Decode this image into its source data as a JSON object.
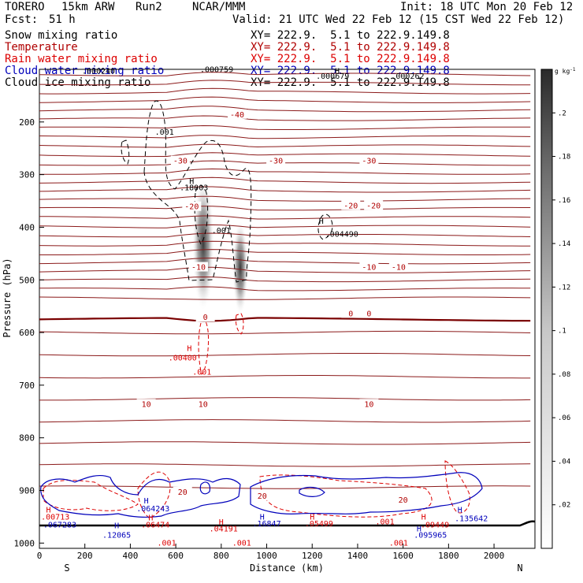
{
  "header": {
    "model": "TORERO",
    "resolution": "15km ARW",
    "run": "Run2",
    "org": "NCAR/MMM",
    "init": "Init: 18 UTC Mon 20 Feb 12",
    "fcst_label": "Fcst:",
    "fcst_value": "51 h",
    "valid": "Valid: 21 UTC Wed 22 Feb 12 (15 CST Wed 22 Feb 12)"
  },
  "legend": [
    {
      "name": "Snow mixing ratio",
      "color": "#000000",
      "xy": "XY= 222.9.  5.1 to 222.9.149.8"
    },
    {
      "name": "Temperature",
      "color": "#b00000",
      "xy": "XY= 222.9.  5.1 to 222.9.149.8"
    },
    {
      "name": "Rain water mixing ratio",
      "color": "#dd0000",
      "xy": "XY= 222.9.  5.1 to 222.9.149.8"
    },
    {
      "name": "Cloud water mixing ratio",
      "color": "#0000bb",
      "xy": "XY= 222.9.  5.1 to 222.9.149.8"
    },
    {
      "name": "Cloud ice mixing ratio",
      "color": "#000000",
      "xy": "XY= 222.9.  5.1 to 222.9.149.8"
    }
  ],
  "chart_data": {
    "type": "contour",
    "xlabel": "Distance (km)",
    "ylabel": "Pressure (hPa)",
    "x_range": [
      0,
      2180
    ],
    "y_range": [
      100,
      1010
    ],
    "x_ticks": [
      "0",
      "200",
      "400",
      "600",
      "800",
      "1000",
      "1200",
      "1400",
      "1600",
      "1800",
      "2000"
    ],
    "y_ticks": [
      "200",
      "300",
      "400",
      "500",
      "600",
      "700",
      "800",
      "900",
      "1000"
    ],
    "x_end_labels": {
      "left": "S",
      "right": "N"
    },
    "colorbar": {
      "unit": "g kg",
      "unit_exp": "-1",
      "ticks": [
        ".02",
        ".04",
        ".06",
        ".08",
        ".1",
        ".12",
        ".14",
        ".16",
        ".18",
        ".2"
      ],
      "range": [
        0,
        0.22
      ]
    },
    "temperature_isotherms": [
      {
        "label": "-40",
        "x": 870,
        "p": 185
      },
      {
        "label": "-30",
        "x": 620,
        "p": 273
      },
      {
        "label": "-30",
        "x": 1040,
        "p": 273
      },
      {
        "label": "-30",
        "x": 1450,
        "p": 273
      },
      {
        "label": "-20",
        "x": 670,
        "p": 360
      },
      {
        "label": "-20",
        "x": 1370,
        "p": 358
      },
      {
        "label": "-20",
        "x": 1470,
        "p": 358
      },
      {
        "label": "-10",
        "x": 700,
        "p": 475
      },
      {
        "label": "-10",
        "x": 1450,
        "p": 475
      },
      {
        "label": "-10",
        "x": 1580,
        "p": 475
      },
      {
        "label": "0",
        "x": 730,
        "p": 570
      },
      {
        "label": "0",
        "x": 1370,
        "p": 563
      },
      {
        "label": "0",
        "x": 1450,
        "p": 563
      },
      {
        "label": "10",
        "x": 470,
        "p": 735
      },
      {
        "label": "10",
        "x": 720,
        "p": 735
      },
      {
        "label": "10",
        "x": 1450,
        "p": 735
      },
      {
        "label": "20",
        "x": 630,
        "p": 902
      },
      {
        "label": "20",
        "x": 980,
        "p": 910
      },
      {
        "label": "20",
        "x": 1600,
        "p": 917
      }
    ],
    "annotations": [
      {
        "text": ".000240",
        "x": 260,
        "p": 108,
        "color": "#000000"
      },
      {
        "text": ".000759",
        "x": 780,
        "p": 105,
        "color": "#000000"
      },
      {
        "text": ".000679",
        "x": 1290,
        "p": 118,
        "color": "#000000"
      },
      {
        "text": ".000262",
        "x": 1620,
        "p": 118,
        "color": "#000000"
      },
      {
        "text": ".001",
        "x": 550,
        "p": 224,
        "color": "#000000"
      },
      {
        "text": ".18003",
        "x": 680,
        "p": 330,
        "color": "#000000"
      },
      {
        "text": ".001",
        "x": 800,
        "p": 411,
        "color": "#000000"
      },
      {
        "text": ".004490",
        "x": 1330,
        "p": 418,
        "color": "#000000"
      },
      {
        "text": ".00400",
        "x": 630,
        "p": 653,
        "color": "#dd0000"
      },
      {
        "text": ".001",
        "x": 715,
        "p": 680,
        "color": "#dd0000"
      },
      {
        "text": ".00713",
        "x": 70,
        "p": 955,
        "color": "#dd0000"
      },
      {
        "text": ".067283",
        "x": 90,
        "p": 970,
        "color": "#0000bb"
      },
      {
        "text": ".064243",
        "x": 500,
        "p": 940,
        "color": "#0000bb"
      },
      {
        "text": ".06474",
        "x": 510,
        "p": 970,
        "color": "#dd0000"
      },
      {
        "text": ".12065",
        "x": 340,
        "p": 990,
        "color": "#0000bb"
      },
      {
        "text": ".04191",
        "x": 810,
        "p": 978,
        "color": "#dd0000"
      },
      {
        "text": ".16847",
        "x": 1000,
        "p": 968,
        "color": "#0000bb"
      },
      {
        "text": ".05499",
        "x": 1230,
        "p": 968,
        "color": "#dd0000"
      },
      {
        "text": ".001",
        "x": 1520,
        "p": 964,
        "color": "#dd0000"
      },
      {
        "text": ".09449",
        "x": 1740,
        "p": 970,
        "color": "#dd0000"
      },
      {
        "text": ".135642",
        "x": 1900,
        "p": 958,
        "color": "#0000bb"
      },
      {
        "text": ".095965",
        "x": 1720,
        "p": 990,
        "color": "#0000bb"
      },
      {
        "text": ".001",
        "x": 560,
        "p": 1005,
        "color": "#dd0000"
      },
      {
        "text": ".001",
        "x": 890,
        "p": 1005,
        "color": "#dd0000"
      },
      {
        "text": ".001",
        "x": 1580,
        "p": 1005,
        "color": "#dd0000"
      }
    ],
    "high_markers": [
      {
        "text": "H",
        "x": 670,
        "p": 318,
        "color": "#000000"
      },
      {
        "text": "H",
        "x": 1240,
        "p": 393,
        "color": "#000000"
      },
      {
        "text": "H",
        "x": 1310,
        "p": 108,
        "color": "#000000"
      },
      {
        "text": "H",
        "x": 660,
        "p": 635,
        "color": "#dd0000"
      },
      {
        "text": "H",
        "x": 40,
        "p": 942,
        "color": "#dd0000"
      },
      {
        "text": "H",
        "x": 470,
        "p": 925,
        "color": "#0000bb"
      },
      {
        "text": "H",
        "x": 490,
        "p": 957,
        "color": "#dd0000"
      },
      {
        "text": "H",
        "x": 340,
        "p": 972,
        "color": "#0000bb"
      },
      {
        "text": "H",
        "x": 800,
        "p": 965,
        "color": "#dd0000"
      },
      {
        "text": "H",
        "x": 980,
        "p": 955,
        "color": "#0000bb"
      },
      {
        "text": "H",
        "x": 1200,
        "p": 955,
        "color": "#dd0000"
      },
      {
        "text": "H",
        "x": 1690,
        "p": 955,
        "color": "#dd0000"
      },
      {
        "text": "H",
        "x": 1850,
        "p": 942,
        "color": "#0000bb"
      },
      {
        "text": "H",
        "x": 1670,
        "p": 978,
        "color": "#0000bb"
      }
    ]
  }
}
